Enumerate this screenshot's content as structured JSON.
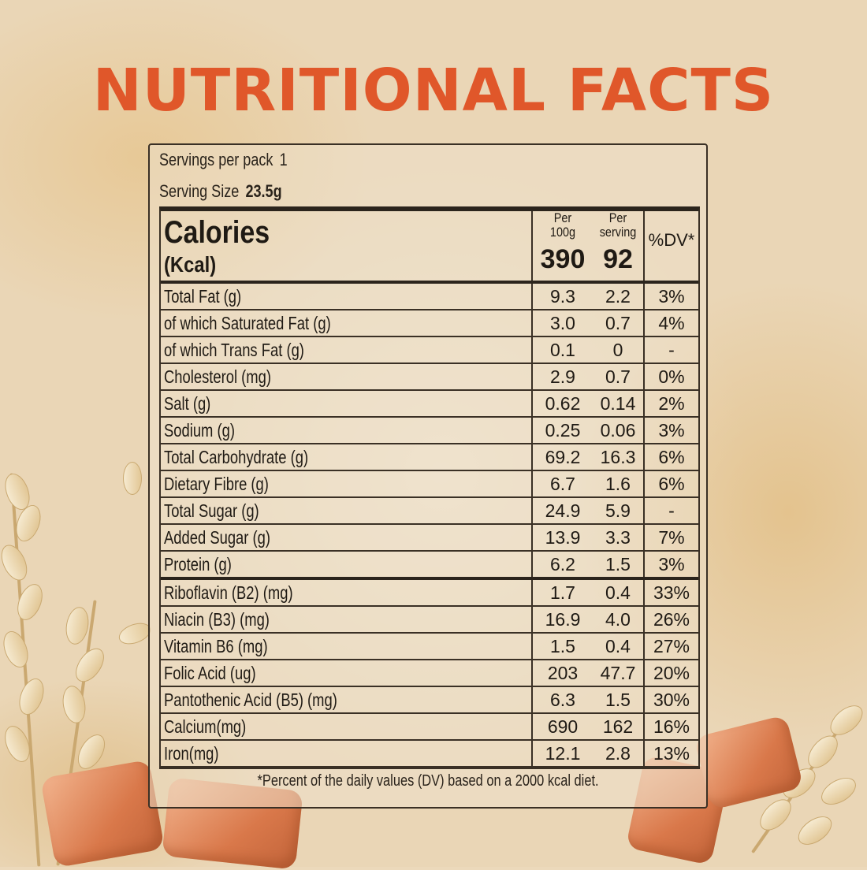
{
  "title": "NUTRITIONAL FACTS",
  "servings_per_pack_label": "Servings per pack",
  "servings_per_pack_value": "1",
  "serving_size_label": "Serving Size",
  "serving_size_value": "23.5g",
  "header": {
    "calories": "Calories",
    "kcal": "(Kcal)",
    "per100_top": "Per",
    "per100_bottom": "100g",
    "perserv_top": "Per",
    "perserv_bottom": "serving",
    "dv": "%DV*",
    "cal_per100": "390",
    "cal_perserv": "92"
  },
  "rows": [
    {
      "name": "Total Fat (g)",
      "per100": "9.3",
      "perserv": "2.2",
      "dv": "3%"
    },
    {
      "name": " of which Saturated Fat (g)",
      "per100": "3.0",
      "perserv": "0.7",
      "dv": "4%"
    },
    {
      "name": " of which Trans Fat (g)",
      "per100": "0.1",
      "perserv": "0",
      "dv": "-"
    },
    {
      "name": "Cholesterol (mg)",
      "per100": "2.9",
      "perserv": "0.7",
      "dv": "0%"
    },
    {
      "name": "Salt (g)",
      "per100": "0.62",
      "perserv": "0.14",
      "dv": "2%"
    },
    {
      "name": "Sodium (g)",
      "per100": "0.25",
      "perserv": "0.06",
      "dv": "3%"
    },
    {
      "name": "Total Carbohydrate (g)",
      "per100": "69.2",
      "perserv": "16.3",
      "dv": "6%"
    },
    {
      "name": "Dietary Fibre (g)",
      "per100": "6.7",
      "perserv": "1.6",
      "dv": "6%"
    },
    {
      "name": "Total Sugar (g)",
      "per100": "24.9",
      "perserv": "5.9",
      "dv": "-"
    },
    {
      "name": "Added Sugar (g)",
      "per100": "13.9",
      "perserv": "3.3",
      "dv": "7%"
    },
    {
      "name": "Protein (g)",
      "per100": "6.2",
      "perserv": "1.5",
      "dv": "3%"
    },
    {
      "name": "Riboflavin (B2) (mg)",
      "per100": "1.7",
      "perserv": "0.4",
      "dv": "33%"
    },
    {
      "name": "Niacin (B3) (mg)",
      "per100": "16.9",
      "perserv": "4.0",
      "dv": "26%"
    },
    {
      "name": "Vitamin B6 (mg)",
      "per100": "1.5",
      "perserv": "0.4",
      "dv": "27%"
    },
    {
      "name": "Folic Acid (ug)",
      "per100": "203",
      "perserv": "47.7",
      "dv": "20%"
    },
    {
      "name": "Pantothenic Acid (B5) (mg)",
      "per100": "6.3",
      "perserv": "1.5",
      "dv": "30%"
    },
    {
      "name": "Calcium(mg)",
      "per100": "690",
      "perserv": "162",
      "dv": "16%"
    },
    {
      "name": "Iron(mg)",
      "per100": "12.1",
      "perserv": "2.8",
      "dv": "13%"
    }
  ],
  "footnote": "*Percent of the daily values (DV) based on a 2000 kcal diet."
}
